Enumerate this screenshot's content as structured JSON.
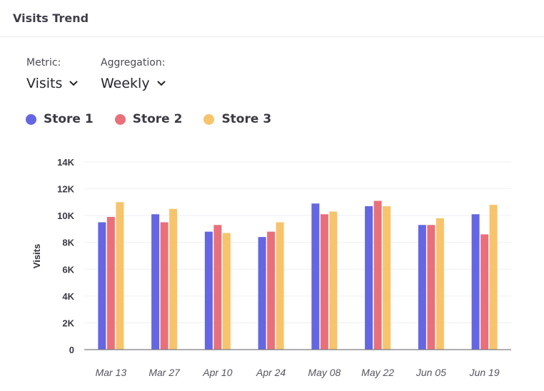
{
  "card": {
    "title": "Visits Trend"
  },
  "controls": {
    "metric": {
      "label": "Metric:",
      "value": "Visits"
    },
    "aggregation": {
      "label": "Aggregation:",
      "value": "Weekly"
    }
  },
  "colors": {
    "store1": "#6466e3",
    "store2": "#e9707a",
    "store3": "#f7c46c",
    "grid": "#efeef3",
    "axis": "#7a7a82"
  },
  "chart_data": {
    "type": "bar",
    "title": "",
    "xlabel": "",
    "ylabel": "Visits",
    "ylim": [
      0,
      14000
    ],
    "yticks": [
      0,
      2000,
      4000,
      6000,
      8000,
      10000,
      12000,
      14000
    ],
    "ytick_labels": [
      "0",
      "2K",
      "4K",
      "6K",
      "8K",
      "10K",
      "12K",
      "14K"
    ],
    "categories": [
      "Mar 13",
      "Mar 27",
      "Apr 10",
      "Apr 24",
      "May 08",
      "May 22",
      "Jun 05",
      "Jun 19"
    ],
    "grid": true,
    "legend_position": "top-left",
    "series": [
      {
        "name": "Store 1",
        "color": "#6466e3",
        "values": [
          9500,
          10100,
          8800,
          8400,
          10900,
          10700,
          9300,
          10100
        ]
      },
      {
        "name": "Store 2",
        "color": "#e9707a",
        "values": [
          9900,
          9500,
          9300,
          8800,
          10100,
          11100,
          9300,
          8600
        ]
      },
      {
        "name": "Store 3",
        "color": "#f7c46c",
        "values": [
          11000,
          10500,
          8700,
          9500,
          10300,
          10700,
          9800,
          10800
        ]
      }
    ]
  }
}
